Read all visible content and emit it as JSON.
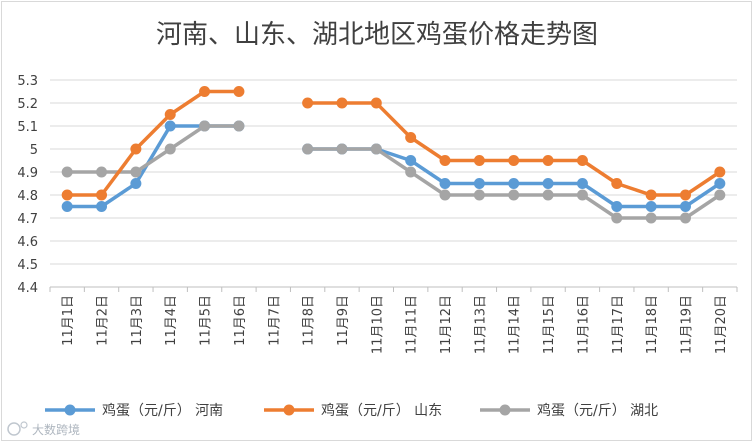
{
  "chart_data": {
    "type": "line",
    "title": "河南、山东、湖北地区鸡蛋价格走势图",
    "xlabel": "",
    "ylabel": "",
    "ylim": [
      4.4,
      5.3
    ],
    "yticks": [
      "4.4",
      "4.5",
      "4.6",
      "4.7",
      "4.8",
      "4.9",
      "5",
      "5.1",
      "5.2",
      "5.3"
    ],
    "categories": [
      "11月1日",
      "11月2日",
      "11月3日",
      "11月4日",
      "11月5日",
      "11月6日",
      "11月7日",
      "11月8日",
      "11月9日",
      "11月10日",
      "11月11日",
      "11月12日",
      "11月13日",
      "11月14日",
      "11月15日",
      "11月16日",
      "11月17日",
      "11月18日",
      "11月19日",
      "11月20日"
    ],
    "legend_position": "bottom",
    "grid": true,
    "series": [
      {
        "name": "鸡蛋（元/斤） 河南",
        "color": "#5b9bd5",
        "values": [
          4.75,
          4.75,
          4.85,
          5.1,
          5.1,
          5.1,
          null,
          5.0,
          5.0,
          5.0,
          4.95,
          4.85,
          4.85,
          4.85,
          4.85,
          4.85,
          4.75,
          4.75,
          4.75,
          4.85
        ]
      },
      {
        "name": "鸡蛋（元/斤） 山东",
        "color": "#ed7d31",
        "values": [
          4.8,
          4.8,
          5.0,
          5.15,
          5.25,
          5.25,
          null,
          5.2,
          5.2,
          5.2,
          5.05,
          4.95,
          4.95,
          4.95,
          4.95,
          4.95,
          4.85,
          4.8,
          4.8,
          4.9
        ]
      },
      {
        "name": "鸡蛋（元/斤） 湖北",
        "color": "#a5a5a5",
        "values": [
          4.9,
          4.9,
          4.9,
          5.0,
          5.1,
          5.1,
          null,
          5.0,
          5.0,
          5.0,
          4.9,
          4.8,
          4.8,
          4.8,
          4.8,
          4.8,
          4.7,
          4.7,
          4.7,
          4.8
        ]
      }
    ]
  },
  "watermark": {
    "text": "大数跨境"
  }
}
